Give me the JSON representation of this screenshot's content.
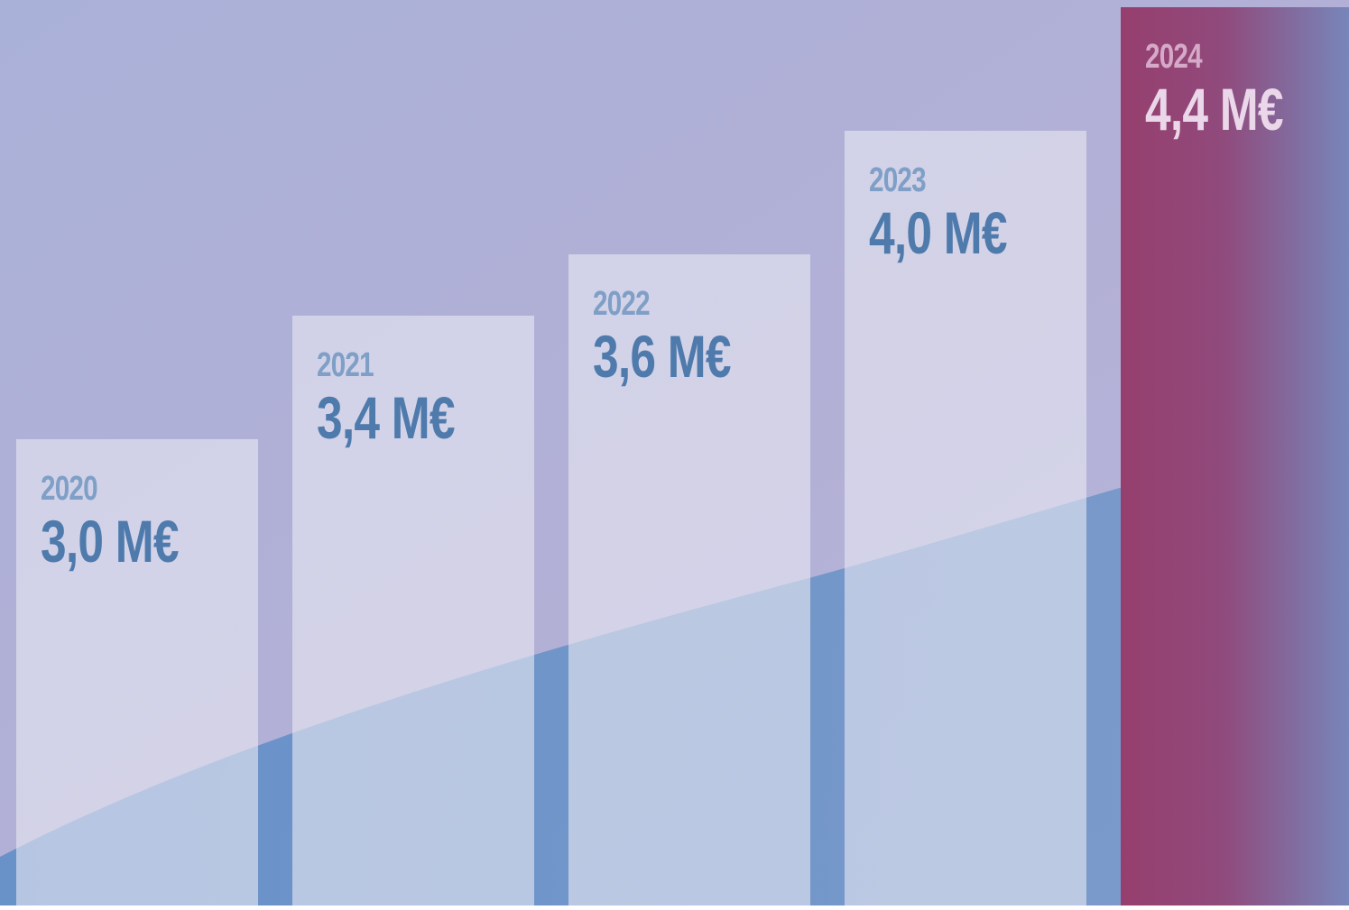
{
  "chart_data": {
    "type": "bar",
    "categories": [
      "2020",
      "2021",
      "2022",
      "2023",
      "2024"
    ],
    "values": [
      3.0,
      3.4,
      3.6,
      4.0,
      4.4
    ],
    "value_labels": [
      "3,0 M€",
      "3,4 M€",
      "3,6 M€",
      "4,0 M€",
      "4,4 M€"
    ],
    "unit": "M€",
    "highlight_index": 4,
    "ylim": [
      0,
      4.4
    ],
    "grid": false,
    "legend": "none"
  },
  "colors": {
    "background_top": "#b2b2d6",
    "background_wave": "#6f97c8",
    "bar_fill": "#e6e6f2",
    "bar_label_year": "#7f9fc6",
    "bar_label_value": "#4e7aac",
    "highlight_start": "#963f6e",
    "highlight_end": "#7a86b9",
    "highlight_label_year": "#d6a9c8",
    "highlight_label_value": "#ebd7ea"
  }
}
